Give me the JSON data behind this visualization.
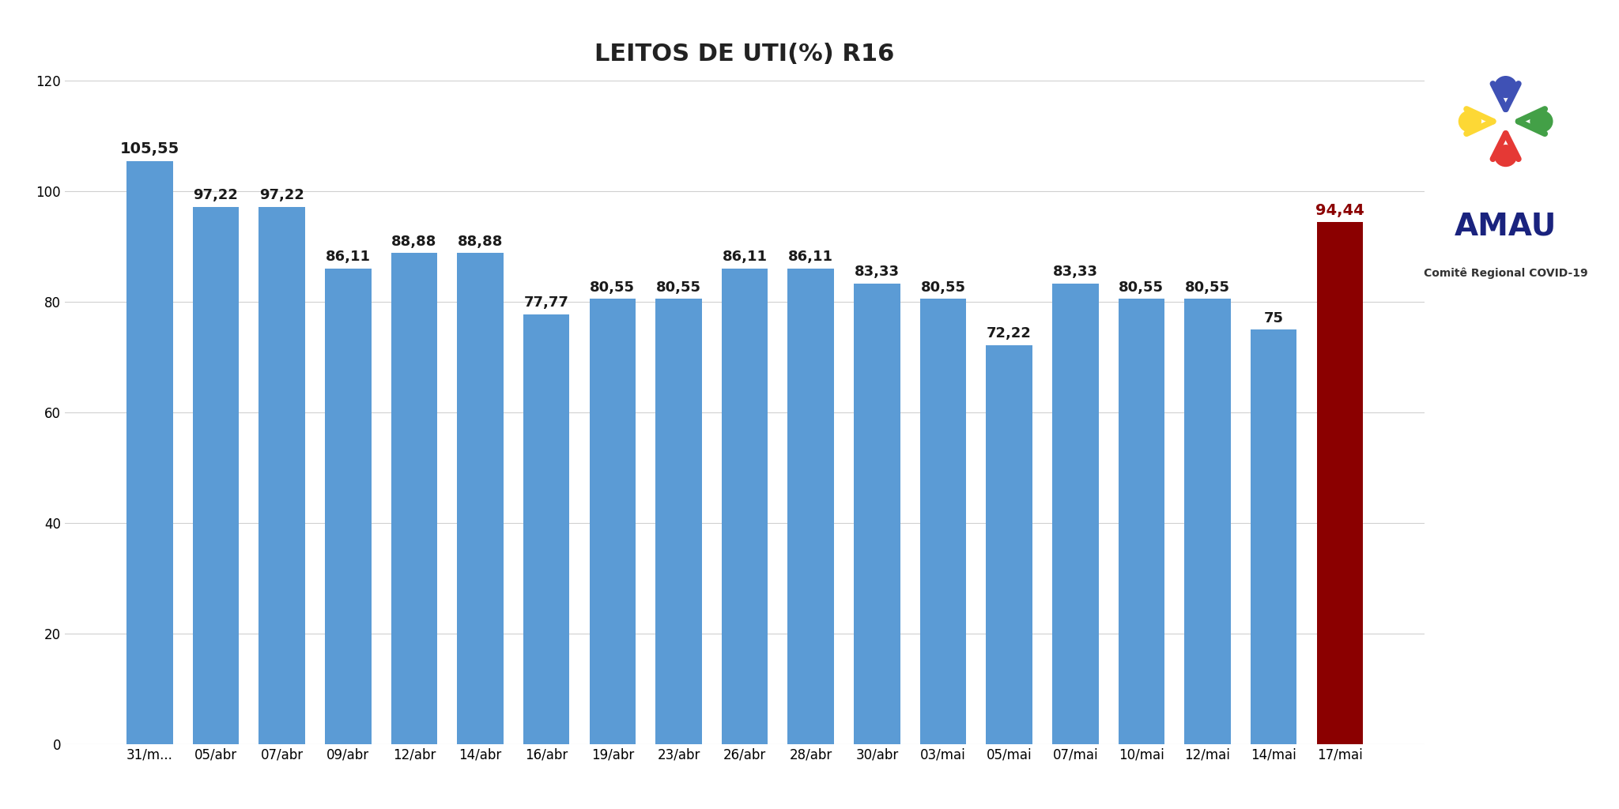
{
  "title": "LEITOS DE UTI(%) R16",
  "categories": [
    "31/m...",
    "05/abr",
    "07/abr",
    "09/abr",
    "12/abr",
    "14/abr",
    "16/abr",
    "19/abr",
    "23/abr",
    "26/abr",
    "28/abr",
    "30/abr",
    "03/mai",
    "05/mai",
    "07/mai",
    "10/mai",
    "12/mai",
    "14/mai",
    "17/mai"
  ],
  "values": [
    105.55,
    97.22,
    97.22,
    86.11,
    88.88,
    88.88,
    77.77,
    80.55,
    80.55,
    86.11,
    86.11,
    83.33,
    80.55,
    72.22,
    83.33,
    80.55,
    80.55,
    75.0,
    94.44
  ],
  "bar_colors": [
    "#5b9bd5",
    "#5b9bd5",
    "#5b9bd5",
    "#5b9bd5",
    "#5b9bd5",
    "#5b9bd5",
    "#5b9bd5",
    "#5b9bd5",
    "#5b9bd5",
    "#5b9bd5",
    "#5b9bd5",
    "#5b9bd5",
    "#5b9bd5",
    "#5b9bd5",
    "#5b9bd5",
    "#5b9bd5",
    "#5b9bd5",
    "#5b9bd5",
    "#8b0000"
  ],
  "ylim": [
    0,
    120
  ],
  "yticks": [
    0,
    20,
    40,
    60,
    80,
    100,
    120
  ],
  "background_color": "#ffffff",
  "title_fontsize": 22,
  "label_fontsize": 12,
  "tick_fontsize": 12,
  "amau_text_color": "#1a237e",
  "logo_colors": {
    "blue": "#3f51b5",
    "yellow": "#fdd835",
    "green": "#43a047",
    "red": "#e53935"
  }
}
